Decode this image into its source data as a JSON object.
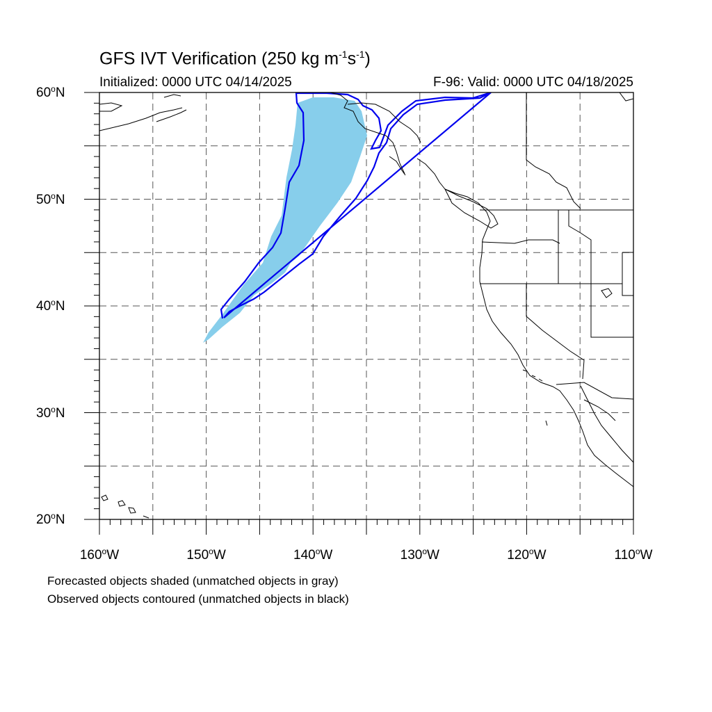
{
  "title": {
    "prefix": "GFS IVT Verification (250 kg m",
    "sup1": "-1",
    "middle": "s",
    "sup2": "-1",
    "suffix": ")"
  },
  "initialized": "Initialized: 0000 UTC 04/14/2025",
  "valid": "F-96: Valid: 0000 UTC 04/18/2025",
  "lat_labels": [
    {
      "num": "60",
      "hem": "N"
    },
    {
      "num": "50",
      "hem": "N"
    },
    {
      "num": "40",
      "hem": "N"
    },
    {
      "num": "30",
      "hem": "N"
    },
    {
      "num": "20",
      "hem": "N"
    }
  ],
  "lon_labels": [
    {
      "num": "160",
      "hem": "W"
    },
    {
      "num": "150",
      "hem": "W"
    },
    {
      "num": "140",
      "hem": "W"
    },
    {
      "num": "130",
      "hem": "W"
    },
    {
      "num": "120",
      "hem": "W"
    },
    {
      "num": "110",
      "hem": "W"
    }
  ],
  "degree_symbol": "o",
  "notes": {
    "forecast": "Forecasted objects shaded (unmatched objects in gray)",
    "observed": "Observed objects contoured (unmatched objects in black)"
  },
  "colors": {
    "forecast_fill": "#87CEEB",
    "observed_contour": "#0000EE",
    "coastline": "#000000",
    "grid": "#555555"
  },
  "map_extent": {
    "lon_min": -160,
    "lon_max": -110,
    "lat_min": 20,
    "lat_max": 60
  }
}
